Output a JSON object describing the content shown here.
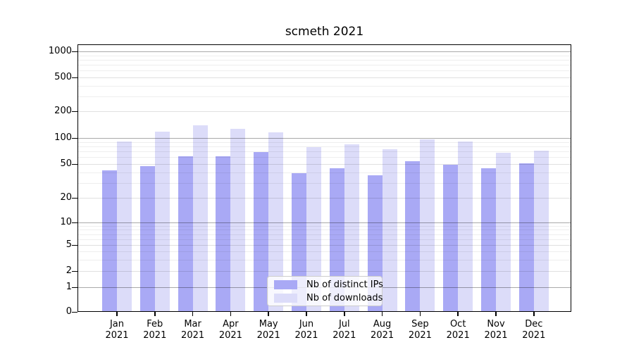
{
  "title": "scmeth 2021",
  "colors": {
    "bar_ips": "#a9a9f5",
    "bar_downloads": "#dcdcf9",
    "grid_decade": "#a9a9a9",
    "grid_labeled": "#e0e0e0",
    "grid_minor": "#eeeeee",
    "frame": "#000000",
    "text": "#000000",
    "legend_border": "#cccccc"
  },
  "legend": {
    "items": [
      {
        "label": "Nb of distinct IPs",
        "color": "#a9a9f5"
      },
      {
        "label": "Nb of downloads",
        "color": "#dcdcf9"
      }
    ]
  },
  "chart_data": {
    "type": "bar",
    "title": "scmeth 2021",
    "categories": [
      "Jan 2021",
      "Feb 2021",
      "Mar 2021",
      "Apr 2021",
      "May 2021",
      "Jun 2021",
      "Jul 2021",
      "Aug 2021",
      "Sep 2021",
      "Oct 2021",
      "Nov 2021",
      "Dec 2021"
    ],
    "series": [
      {
        "name": "Nb of distinct IPs",
        "color": "#a9a9f5",
        "values": [
          42,
          47,
          62,
          61,
          69,
          39,
          45,
          37,
          54,
          49,
          45,
          51
        ]
      },
      {
        "name": "Nb of downloads",
        "color": "#dcdcf9",
        "values": [
          92,
          118,
          140,
          126,
          115,
          79,
          85,
          74,
          96,
          92,
          67,
          71
        ]
      }
    ],
    "xlabel": "",
    "ylabel": "",
    "ylim": [
      0,
      1000
    ],
    "yscale": "log-like with 0 baseline",
    "grid": true,
    "legend_position": "lower center, inside plot",
    "yticks": [
      {
        "value": 0,
        "label": "0",
        "y": 380
      },
      {
        "value": 1,
        "label": "1",
        "y": 345
      },
      {
        "value": 2,
        "label": "2",
        "y": 322
      },
      {
        "value": 5,
        "label": "5",
        "y": 285
      },
      {
        "value": 10,
        "label": "10",
        "y": 253
      },
      {
        "value": 20,
        "label": "20",
        "y": 218
      },
      {
        "value": 50,
        "label": "50",
        "y": 170
      },
      {
        "value": 100,
        "label": "100",
        "y": 133
      },
      {
        "value": 200,
        "label": "200",
        "y": 95
      },
      {
        "value": 500,
        "label": "500",
        "y": 47
      },
      {
        "value": 1000,
        "label": "1000",
        "y": 10
      }
    ],
    "minor_gridlines": [
      3,
      4,
      6,
      7,
      8,
      9,
      30,
      40,
      60,
      70,
      80,
      90,
      300,
      400,
      600,
      700,
      800,
      900
    ]
  }
}
